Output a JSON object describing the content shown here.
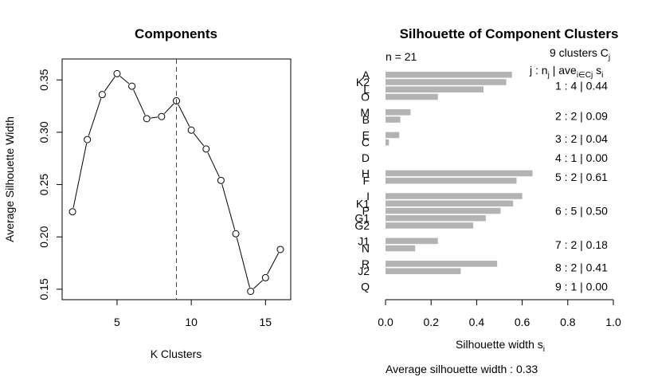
{
  "chart_data": [
    {
      "type": "line",
      "title": "Components",
      "xlabel": "K Clusters",
      "ylabel": "Average Silhouette Width",
      "x": [
        2,
        3,
        4,
        5,
        6,
        7,
        8,
        9,
        10,
        11,
        12,
        13,
        14,
        15,
        16
      ],
      "y": [
        0.224,
        0.293,
        0.336,
        0.356,
        0.344,
        0.313,
        0.315,
        0.33,
        0.302,
        0.284,
        0.254,
        0.203,
        0.148,
        0.161,
        0.188
      ],
      "xlim": [
        1.3,
        16.7
      ],
      "ylim": [
        0.14,
        0.37
      ],
      "xticks": [
        5,
        10,
        15
      ],
      "yticks": [
        0.15,
        0.2,
        0.25,
        0.3,
        0.35
      ],
      "xtick_labels": [
        "5",
        "10",
        "15"
      ],
      "ytick_labels": [
        "0.15",
        "0.20",
        "0.25",
        "0.30",
        "0.35"
      ],
      "vline_x": 9,
      "marker": "open-circle"
    },
    {
      "type": "bar",
      "orientation": "horizontal",
      "title": "Silhouette of Component Clusters",
      "n_label": "n = 21",
      "header_clusters": "9  clusters  C",
      "header_clusters_sub": "j",
      "header_cols": [
        "j :  n",
        "j",
        " | ave",
        "i∈Cj",
        "  s",
        "i"
      ],
      "xlabel": "Silhouette width s",
      "xlabel_sub": "i",
      "xlim": [
        0,
        1
      ],
      "xticks": [
        0,
        0.2,
        0.4,
        0.6,
        0.8,
        1.0
      ],
      "xtick_labels": [
        "0.0",
        "0.2",
        "0.4",
        "0.6",
        "0.8",
        "1.0"
      ],
      "footer": "Average silhouette width :  0.33",
      "items": [
        {
          "label": "A",
          "value": 0.555
        },
        {
          "label": "K2",
          "value": 0.53
        },
        {
          "label": "L",
          "value": 0.43
        },
        {
          "label": "O",
          "value": 0.23
        },
        {
          "label": "M",
          "value": 0.11
        },
        {
          "label": "B",
          "value": 0.065
        },
        {
          "label": "E",
          "value": 0.06
        },
        {
          "label": "C",
          "value": 0.015
        },
        {
          "label": "D",
          "value": 0
        },
        {
          "label": "H",
          "value": 0.645
        },
        {
          "label": "F",
          "value": 0.575
        },
        {
          "label": "I",
          "value": 0.6
        },
        {
          "label": "K1",
          "value": 0.56
        },
        {
          "label": "P",
          "value": 0.505
        },
        {
          "label": "G1",
          "value": 0.44
        },
        {
          "label": "G2",
          "value": 0.385
        },
        {
          "label": "J1",
          "value": 0.23
        },
        {
          "label": "N",
          "value": 0.13
        },
        {
          "label": "R",
          "value": 0.49
        },
        {
          "label": "J2",
          "value": 0.33
        },
        {
          "label": "Q",
          "value": 0
        }
      ],
      "clusters": [
        {
          "j": "1",
          "n": "4",
          "ave": "0.44",
          "size": 4
        },
        {
          "j": "2",
          "n": "2",
          "ave": "0.09",
          "size": 2
        },
        {
          "j": "3",
          "n": "2",
          "ave": "0.04",
          "size": 2
        },
        {
          "j": "4",
          "n": "1",
          "ave": "0.00",
          "size": 1
        },
        {
          "j": "5",
          "n": "2",
          "ave": "0.61",
          "size": 2
        },
        {
          "j": "6",
          "n": "5",
          "ave": "0.50",
          "size": 5
        },
        {
          "j": "7",
          "n": "2",
          "ave": "0.18",
          "size": 2
        },
        {
          "j": "8",
          "n": "2",
          "ave": "0.41",
          "size": 2
        },
        {
          "j": "9",
          "n": "1",
          "ave": "0.00",
          "size": 1
        }
      ],
      "bar_color": "#b3b3b3"
    }
  ]
}
